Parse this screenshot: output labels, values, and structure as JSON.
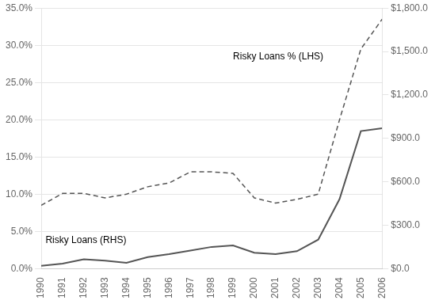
{
  "chart_data": {
    "type": "line",
    "x": [
      1990,
      1991,
      1992,
      1993,
      1994,
      1995,
      1996,
      1997,
      1998,
      1999,
      2000,
      2001,
      2002,
      2003,
      2004,
      2005,
      2006
    ],
    "xlim": [
      1990,
      2006
    ],
    "xticks": [
      1990,
      1991,
      1992,
      1993,
      1994,
      1995,
      1996,
      1997,
      1998,
      1999,
      2000,
      2001,
      2002,
      2003,
      2004,
      2005,
      2006
    ],
    "series": [
      {
        "name": "Risky Loans % (LHS)",
        "color": "#555555",
        "line_style": "dashed",
        "values": [
          0.085,
          0.101,
          0.101,
          0.095,
          0.1,
          0.11,
          0.115,
          0.13,
          0.13,
          0.128,
          0.095,
          0.088,
          0.093,
          0.1,
          0.2,
          0.295,
          0.335
        ]
      },
      {
        "name": "Risky Loans (RHS)",
        "color": "#555555",
        "line_style": "solid",
        "axis": "y2",
        "values": [
          20,
          35,
          65,
          55,
          40,
          80,
          100,
          125,
          150,
          160,
          110,
          100,
          120,
          200,
          480,
          950,
          970
        ]
      }
    ],
    "ylim": [
      0.0,
      0.35
    ],
    "yticks": [
      {
        "value": 0.0,
        "label": "0.0%"
      },
      {
        "value": 0.05,
        "label": "5.0%"
      },
      {
        "value": 0.1,
        "label": "10.0%"
      },
      {
        "value": 0.15,
        "label": "15.0%"
      },
      {
        "value": 0.2,
        "label": "20.0%"
      },
      {
        "value": 0.25,
        "label": "25.0%"
      },
      {
        "value": 0.3,
        "label": "30.0%"
      },
      {
        "value": 0.35,
        "label": "35.0%"
      }
    ],
    "y2lim": [
      0,
      1800
    ],
    "y2ticks": [
      {
        "value": 0,
        "label": "$0.0"
      },
      {
        "value": 300,
        "label": "$300.0"
      },
      {
        "value": 600,
        "label": "$600.0"
      },
      {
        "value": 900,
        "label": "$900.0"
      },
      {
        "value": 1200,
        "label": "$1,200.0"
      },
      {
        "value": 1500,
        "label": "$1,500.0"
      },
      {
        "value": 1800,
        "label": "$1,800.0"
      }
    ],
    "grid": true,
    "annotations": [
      {
        "text": "Risky Loans % (LHS)",
        "x": 1999,
        "y": 0.285
      },
      {
        "text": "Risky Loans (RHS)",
        "x": 1990.2,
        "y": 0.038
      }
    ]
  }
}
